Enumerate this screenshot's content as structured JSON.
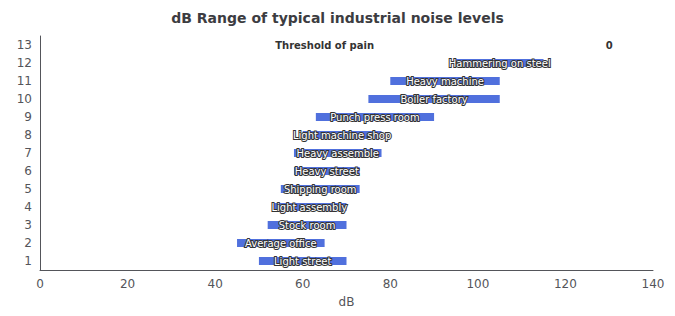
{
  "chart_data": {
    "type": "bar",
    "orientation": "horizontal",
    "title": "dB Range of typical industrial noise levels",
    "xlabel": "dB",
    "categories": [
      "1",
      "2",
      "3",
      "4",
      "5",
      "6",
      "7",
      "8",
      "9",
      "10",
      "11",
      "12",
      "13"
    ],
    "values": [
      [
        50,
        70
      ],
      [
        45,
        65
      ],
      [
        52,
        70
      ],
      [
        53,
        70
      ],
      [
        55,
        73
      ],
      [
        58,
        73
      ],
      [
        58,
        78
      ],
      [
        60,
        78
      ],
      [
        63,
        90
      ],
      [
        75,
        105
      ],
      [
        80,
        105
      ],
      [
        95,
        115
      ],
      null
    ],
    "bar_labels": [
      "Light street",
      "Average office",
      "Stock room",
      "Light assembly",
      "Shipping room",
      "Heavy street",
      "Heavy assemble",
      "Light machine shop",
      "Punch press room",
      "Boiler factory",
      "Heavy machine",
      "Hammering on steel",
      null
    ],
    "annotations": [
      {
        "text": "Threshold of pain",
        "x": 65,
        "y": "13"
      },
      {
        "text": "0",
        "x": 130,
        "y": "13"
      }
    ],
    "xlim": [
      0,
      140
    ],
    "xticks": [
      0,
      20,
      40,
      60,
      80,
      100,
      120,
      140
    ],
    "grid": false
  }
}
